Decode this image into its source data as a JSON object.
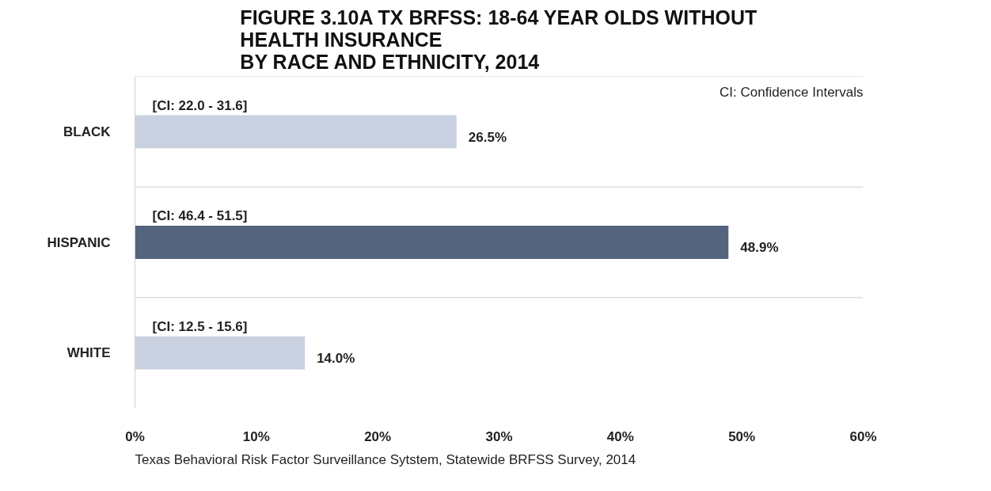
{
  "chart_data": {
    "type": "bar",
    "orientation": "horizontal",
    "title": "FIGURE 3.10A TX BRFSS: 18-64 YEAR OLDS WITHOUT\nHEALTH INSURANCE\nBY RACE AND ETHNICITY, 2014",
    "categories": [
      "BLACK",
      "HISPANIC",
      "WHITE"
    ],
    "values": [
      26.5,
      48.9,
      14.0
    ],
    "colors": [
      "#c9d1e0",
      "#54647f",
      "#c9d1e0"
    ],
    "value_labels": [
      "26.5%",
      "48.9%",
      "14.0%"
    ],
    "xlim": [
      0,
      60
    ],
    "xticks": [
      {
        "value": 0,
        "label": "0%"
      },
      {
        "value": 10,
        "label": "10%"
      },
      {
        "value": 20,
        "label": "20%"
      },
      {
        "value": 30,
        "label": "30%"
      },
      {
        "value": 40,
        "label": "40%"
      },
      {
        "value": 50,
        "label": "50%"
      },
      {
        "value": 60,
        "label": "60%"
      }
    ],
    "grid": "y",
    "annotations": [
      "[CI: 22.0 - 31.6]",
      "[CI: 46.4 - 51.5]",
      "[CI: 12.5 - 15.6]",
      "CI: Confidence Intervals",
      "Texas Behavioral Risk Factor Surveillance Sytstem, Statewide BRFSS  Survey, 2014"
    ]
  }
}
